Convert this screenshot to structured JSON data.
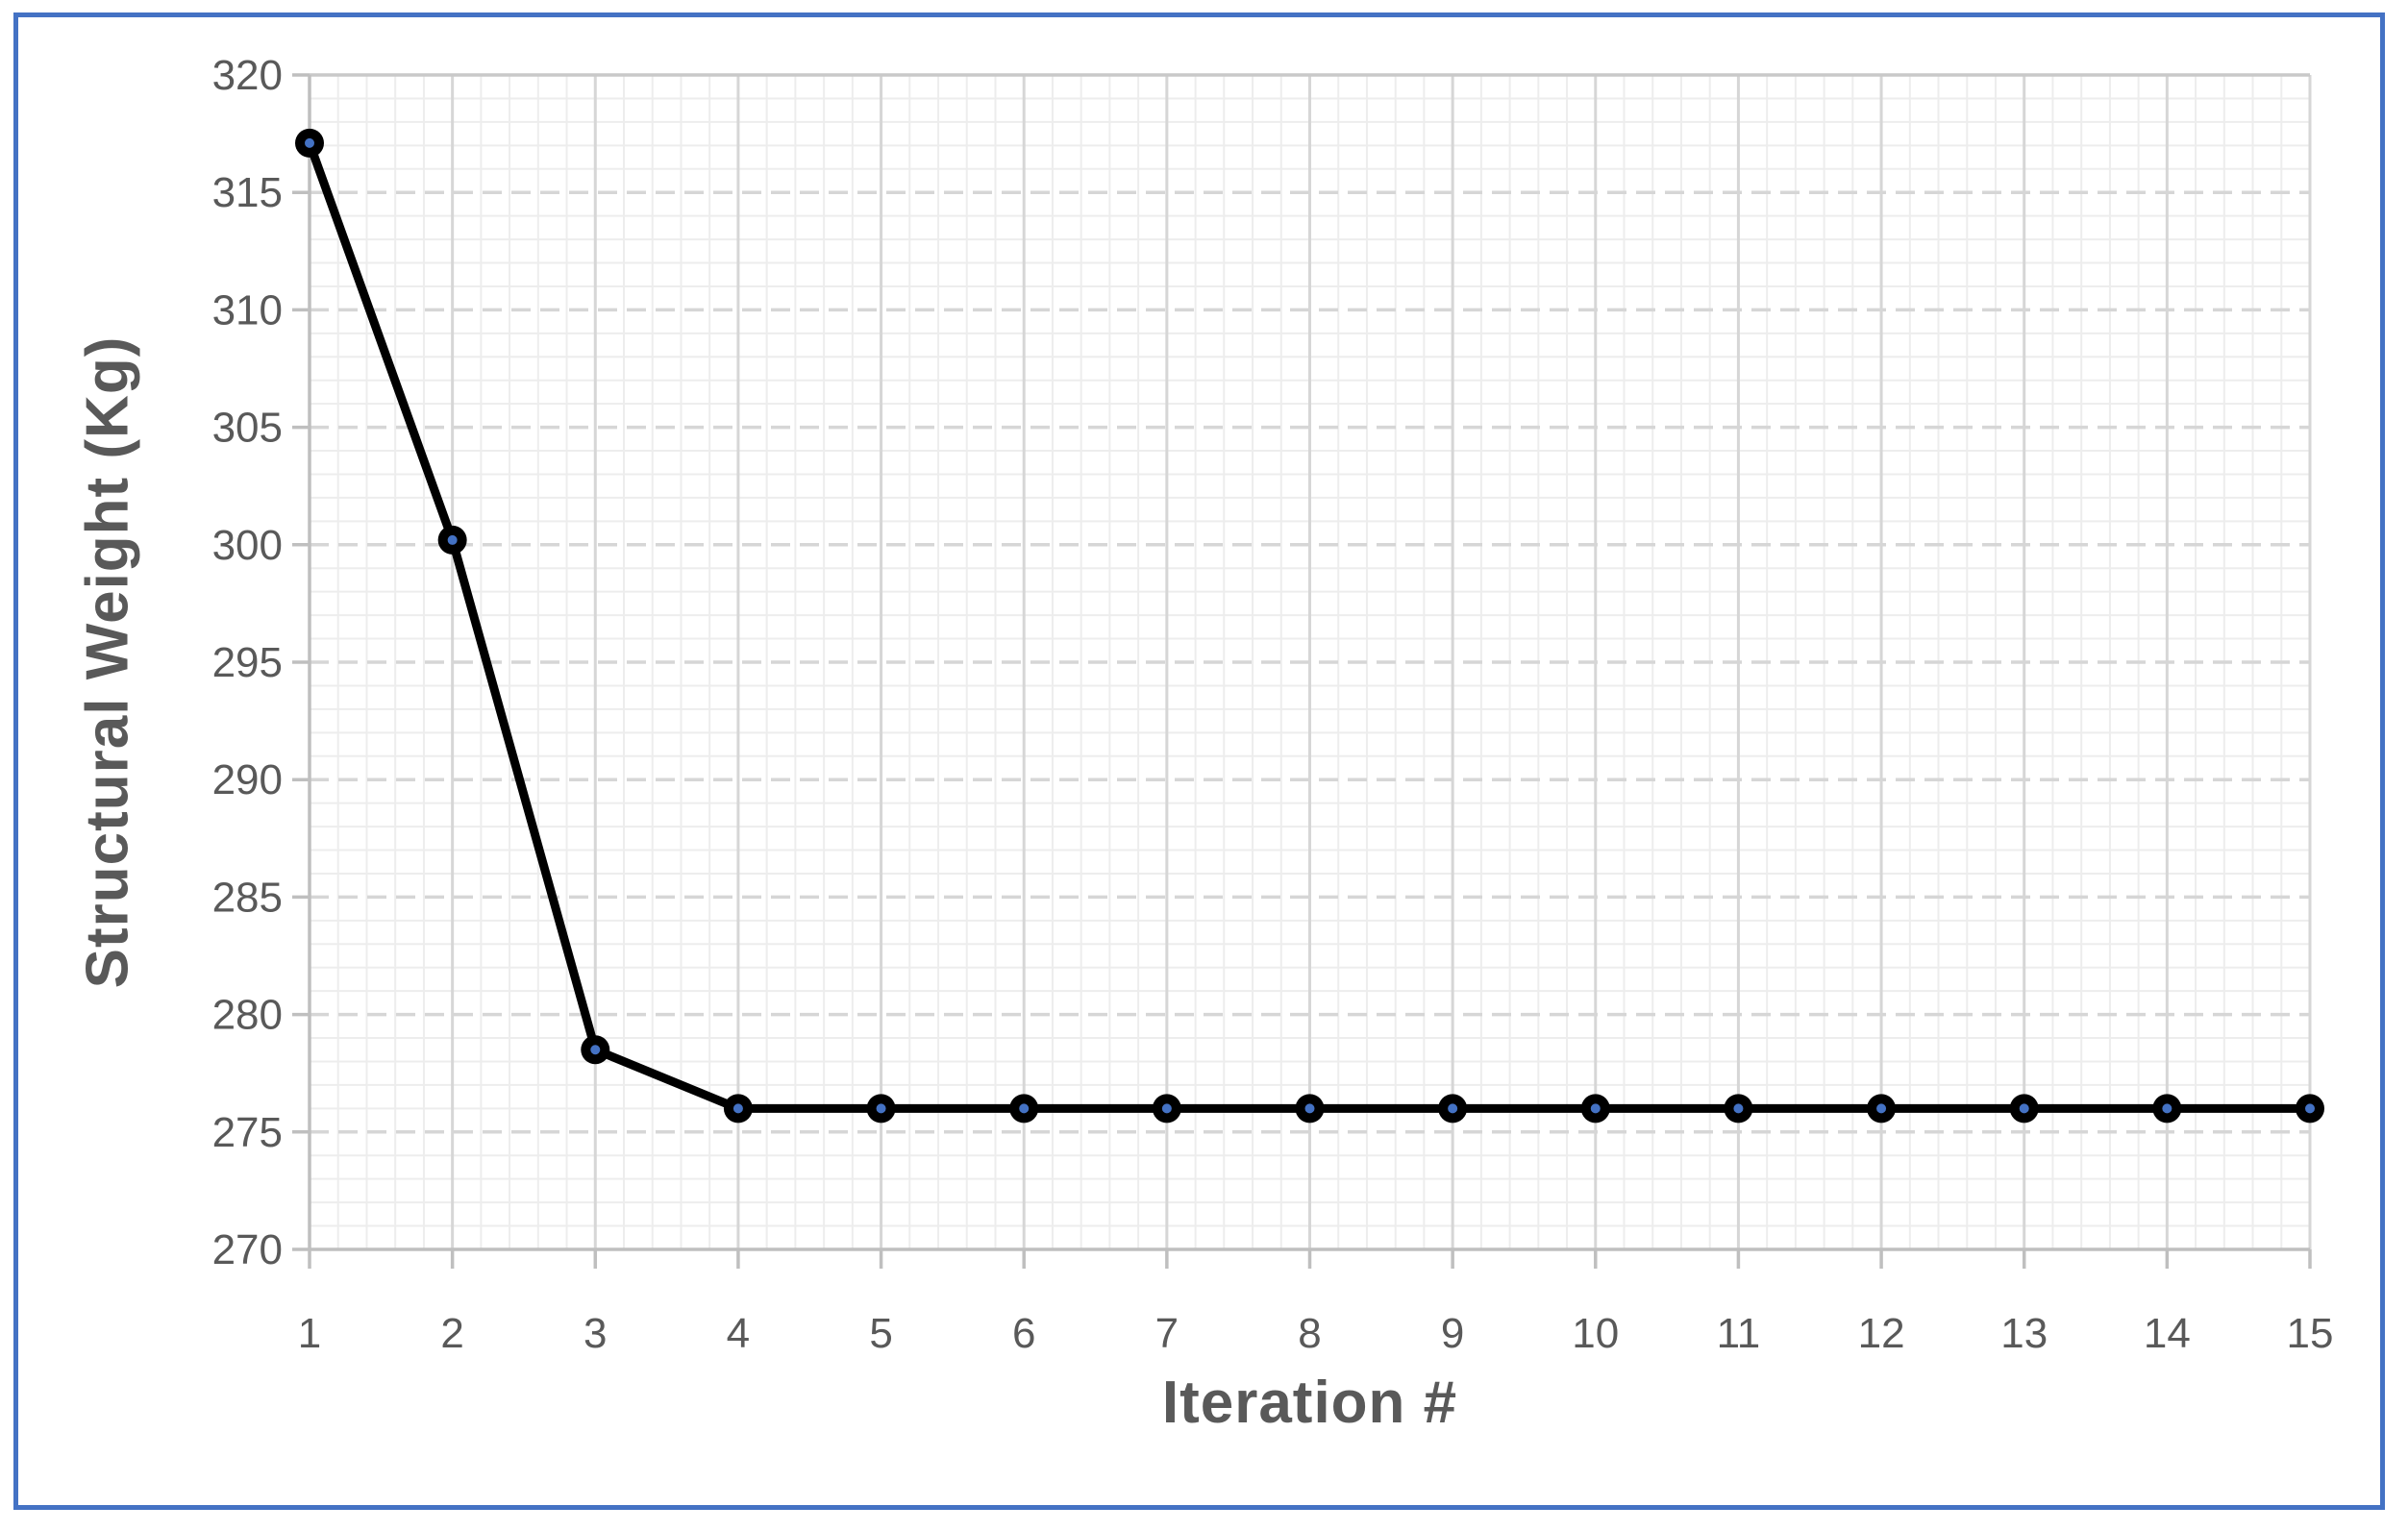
{
  "chart_data": {
    "type": "line",
    "title": "",
    "xlabel": "Iteration #",
    "ylabel": "Structural Weight (Kg)",
    "x": [
      1,
      2,
      3,
      4,
      5,
      6,
      7,
      8,
      9,
      10,
      11,
      12,
      13,
      14,
      15
    ],
    "series": [
      {
        "name": "Structural Weight",
        "values": [
          317.1,
          300.2,
          278.5,
          276,
          276,
          276,
          276,
          276,
          276,
          276,
          276,
          276,
          276,
          276,
          276
        ]
      }
    ],
    "xlim": [
      1,
      15
    ],
    "ylim": [
      270,
      320
    ],
    "ytick_step": 5,
    "xtick_step": 1,
    "grid": {
      "major_x": "solid",
      "major_y": "dashed",
      "top_line": "solid",
      "x_minor_per_interval": 5,
      "y_minor_per_unit": 1,
      "visible": true
    },
    "legend": "none",
    "marker": "circle-with-dot"
  },
  "colors": {
    "frame_border": "#4472C4",
    "series_line": "#000000",
    "marker_fill": "#000000",
    "marker_dot": "#4472C4",
    "axis_line": "#BFBFBF",
    "grid_major": "#D6D6D6",
    "grid_top": "#C9C9C9",
    "grid_minor": "#EDEDED",
    "tick_label": "#595959",
    "axis_title": "#595959",
    "background": "#FFFFFF"
  }
}
